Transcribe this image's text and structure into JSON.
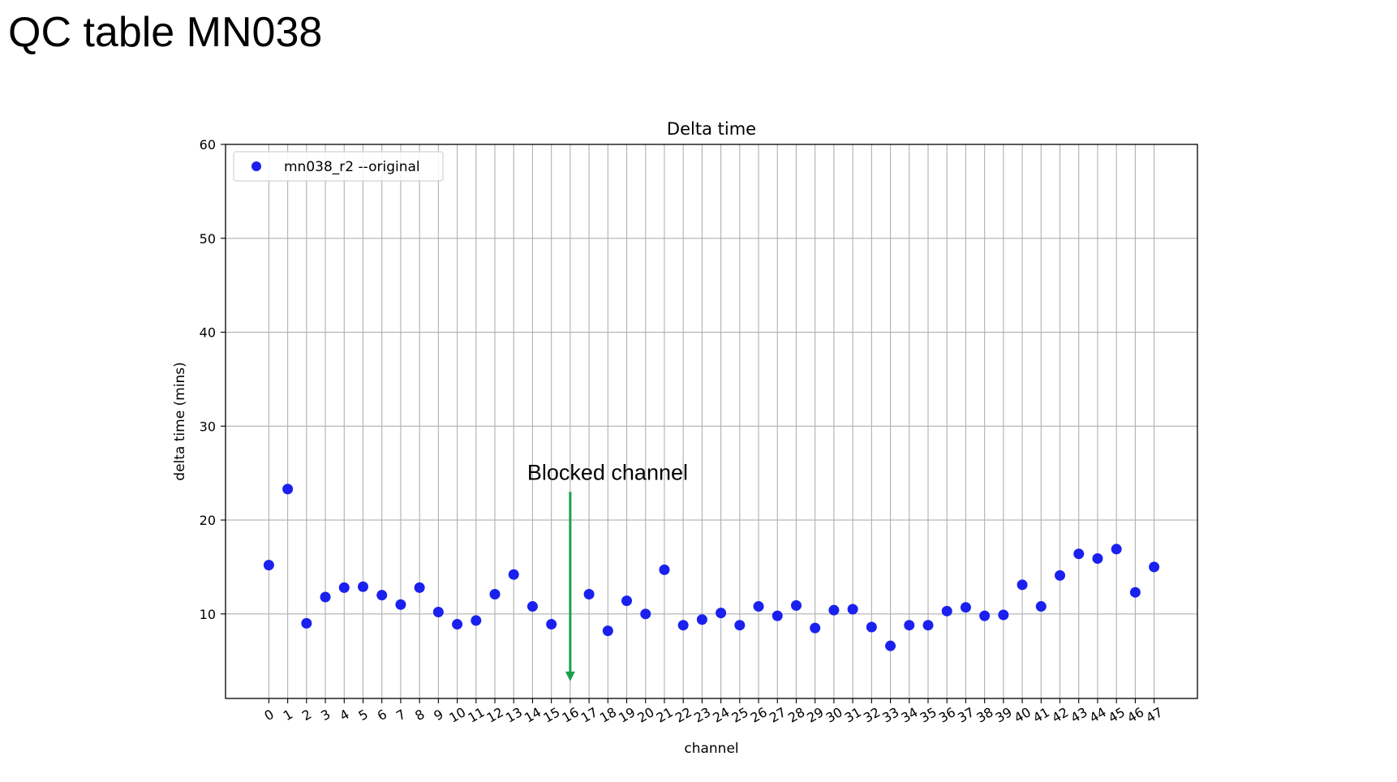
{
  "slide": {
    "title": "QC table MN038"
  },
  "chart_data": {
    "type": "scatter",
    "title": "Delta time",
    "xlabel": "channel",
    "ylabel": "delta time (mins)",
    "x": [
      0,
      1,
      2,
      3,
      4,
      5,
      6,
      7,
      8,
      9,
      10,
      11,
      12,
      13,
      14,
      15,
      16,
      17,
      18,
      19,
      20,
      21,
      22,
      23,
      24,
      25,
      26,
      27,
      28,
      29,
      30,
      31,
      32,
      33,
      34,
      35,
      36,
      37,
      38,
      39,
      40,
      41,
      42,
      43,
      44,
      45,
      46,
      47
    ],
    "x_tick_labels": [
      "0",
      "1",
      "2",
      "3",
      "4",
      "5",
      "6",
      "7",
      "8",
      "9",
      "10",
      "11",
      "12",
      "13",
      "14",
      "15",
      "16",
      "17",
      "18",
      "19",
      "20",
      "21",
      "22",
      "23",
      "24",
      "25",
      "26",
      "27",
      "28",
      "29",
      "30",
      "31",
      "32",
      "33",
      "34",
      "35",
      "36",
      "37",
      "38",
      "39",
      "40",
      "41",
      "42",
      "43",
      "44",
      "45",
      "46",
      "47"
    ],
    "y_ticks": [
      10,
      20,
      30,
      40,
      50,
      60
    ],
    "y_tick_labels": [
      "10",
      "20",
      "30",
      "40",
      "50",
      "60"
    ],
    "ylim": [
      1,
      60
    ],
    "xlim": [
      -2.3,
      49.3
    ],
    "grid": true,
    "legend": "top-left",
    "series": [
      {
        "name": "mn038_r2 --original",
        "color": "#1a21ee",
        "points": [
          {
            "x": 0,
            "y": 15.2
          },
          {
            "x": 1,
            "y": 23.3
          },
          {
            "x": 2,
            "y": 9.0
          },
          {
            "x": 3,
            "y": 11.8
          },
          {
            "x": 4,
            "y": 12.8
          },
          {
            "x": 5,
            "y": 12.9
          },
          {
            "x": 6,
            "y": 12.0
          },
          {
            "x": 7,
            "y": 11.0
          },
          {
            "x": 8,
            "y": 12.8
          },
          {
            "x": 9,
            "y": 10.2
          },
          {
            "x": 10,
            "y": 8.9
          },
          {
            "x": 11,
            "y": 9.3
          },
          {
            "x": 12,
            "y": 12.1
          },
          {
            "x": 13,
            "y": 14.2
          },
          {
            "x": 14,
            "y": 10.8
          },
          {
            "x": 15,
            "y": 8.9
          },
          {
            "x": 17,
            "y": 12.1
          },
          {
            "x": 18,
            "y": 8.2
          },
          {
            "x": 19,
            "y": 11.4
          },
          {
            "x": 20,
            "y": 10.0
          },
          {
            "x": 21,
            "y": 14.7
          },
          {
            "x": 22,
            "y": 8.8
          },
          {
            "x": 23,
            "y": 9.4
          },
          {
            "x": 24,
            "y": 10.1
          },
          {
            "x": 25,
            "y": 8.8
          },
          {
            "x": 26,
            "y": 10.8
          },
          {
            "x": 27,
            "y": 9.8
          },
          {
            "x": 28,
            "y": 10.9
          },
          {
            "x": 29,
            "y": 8.5
          },
          {
            "x": 30,
            "y": 10.4
          },
          {
            "x": 31,
            "y": 10.5
          },
          {
            "x": 32,
            "y": 8.6
          },
          {
            "x": 33,
            "y": 6.6
          },
          {
            "x": 34,
            "y": 8.8
          },
          {
            "x": 35,
            "y": 8.8
          },
          {
            "x": 36,
            "y": 10.3
          },
          {
            "x": 37,
            "y": 10.7
          },
          {
            "x": 38,
            "y": 9.8
          },
          {
            "x": 39,
            "y": 9.9
          },
          {
            "x": 40,
            "y": 13.1
          },
          {
            "x": 41,
            "y": 10.8
          },
          {
            "x": 42,
            "y": 14.1
          },
          {
            "x": 43,
            "y": 16.4
          },
          {
            "x": 44,
            "y": 15.9
          },
          {
            "x": 45,
            "y": 16.9
          },
          {
            "x": 46,
            "y": 12.3
          },
          {
            "x": 47,
            "y": 15.0
          }
        ]
      }
    ],
    "annotations": [
      {
        "text": "Blocked channel",
        "x": 16,
        "arrow_from_y": 23,
        "arrow_to_y": 3.0,
        "color": "#1aa04a"
      }
    ]
  }
}
